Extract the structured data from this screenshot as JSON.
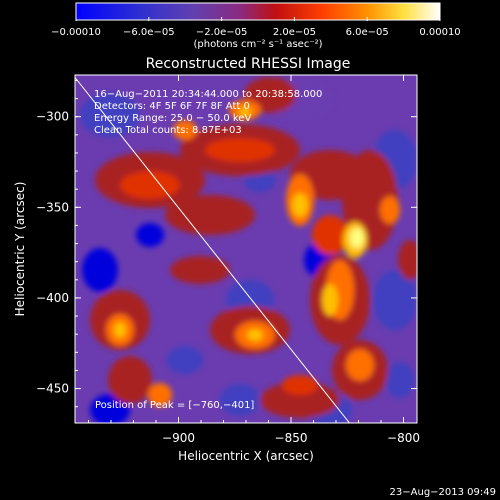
{
  "chart_data": {
    "type": "heatmap",
    "title": "Reconstructed RHESSI Image",
    "xlabel": "Heliocentric X (arcsec)",
    "ylabel": "Heliocentric Y (arcsec)",
    "xlim": [
      -946,
      -794
    ],
    "ylim": [
      -469,
      -277
    ],
    "x_ticks": [
      -900,
      -850,
      -800
    ],
    "x_tick_labels": [
      "−900",
      "−850",
      "−800"
    ],
    "y_ticks": [
      -300,
      -350,
      -400,
      -450
    ],
    "y_tick_labels": [
      "−300",
      "−350",
      "−400",
      "−450"
    ],
    "colorbar": {
      "range": [
        -0.0001,
        0.0001
      ],
      "ticks": [
        -0.0001,
        -6e-05,
        -2e-05,
        2e-05,
        6e-05,
        0.0001
      ],
      "tick_labels": [
        "−0.00010",
        "−6.0e−05",
        "−2.0e−05",
        "2.0e−05",
        "6.0e−05",
        "0.00010"
      ],
      "unit_label": "(photons cm⁻² s⁻¹ asec⁻²)"
    },
    "annotations": [
      "16−Aug−2011 20:34:44.000 to 20:38:58.000",
      "Detectors: 4F 5F 6F 7F 8F  Att 0",
      "Energy Range: 25.0 − 50.0 keV",
      "Clean    Total counts: 8.87E+03"
    ],
    "peak_label": "Position of Peak = [−760,−401]",
    "limb_line": {
      "x": [
        -952,
        -824
      ],
      "y": [
        -269,
        -469
      ]
    },
    "colormap": [
      "#0000dd",
      "#4040c0",
      "#6a3cb0",
      "#7a3a9a",
      "#a82020",
      "#e03000",
      "#ff7000",
      "#ffc000",
      "#ffff80",
      "#ffffff"
    ]
  },
  "footer": {
    "timestamp": "23−Aug−2013 09:49"
  }
}
